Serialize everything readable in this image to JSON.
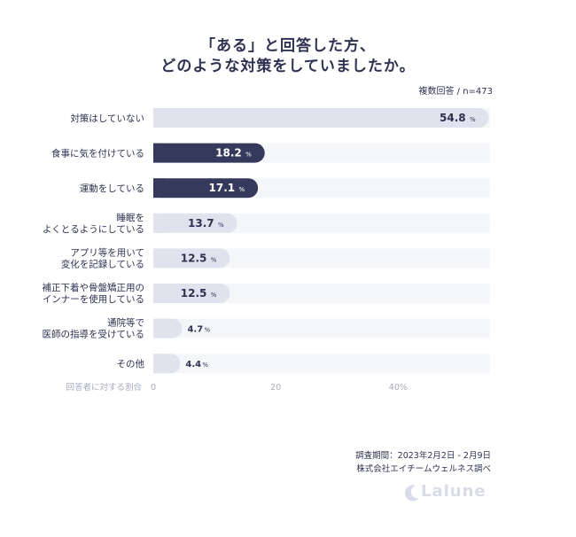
{
  "title": {
    "line1": "「ある」と回答した方、",
    "line2": "どのような対策をしていましたか。"
  },
  "sample_note": "複数回答 / n=473",
  "axis_label": "回答者に対する割合",
  "footer": {
    "period": "調査期間：2023年2月2日 - 2月9日",
    "company": "株式会社エイチームウェルネス調べ"
  },
  "logo_text": "Lalune",
  "colors": {
    "highlight_bar": "#353a5d",
    "normal_bar": "#e0e3ee",
    "track": "#f5f6fa",
    "text": "#2e3150",
    "muted": "#a7aabb"
  },
  "chart_data": {
    "type": "bar",
    "orientation": "horizontal",
    "unit": "%",
    "categories": [
      [
        "対策はしていない"
      ],
      [
        "食事に気を付けている"
      ],
      [
        "運動をしている"
      ],
      [
        "睡眠を",
        "よくとるようにしている"
      ],
      [
        "アプリ等を用いて",
        "変化を記録している"
      ],
      [
        "補正下着や骨盤矯正用の",
        "インナーを使用している"
      ],
      [
        "通院等で",
        "医師の指導を受けている"
      ],
      [
        "その他"
      ]
    ],
    "values": [
      54.8,
      18.2,
      17.1,
      13.7,
      12.5,
      12.5,
      4.7,
      4.4
    ],
    "highlighted": [
      false,
      true,
      true,
      false,
      false,
      false,
      false,
      false
    ],
    "xlim": [
      0,
      55
    ],
    "xticks": [
      0,
      20,
      40
    ],
    "xtick_labels": [
      "0",
      "20",
      "40%"
    ]
  }
}
